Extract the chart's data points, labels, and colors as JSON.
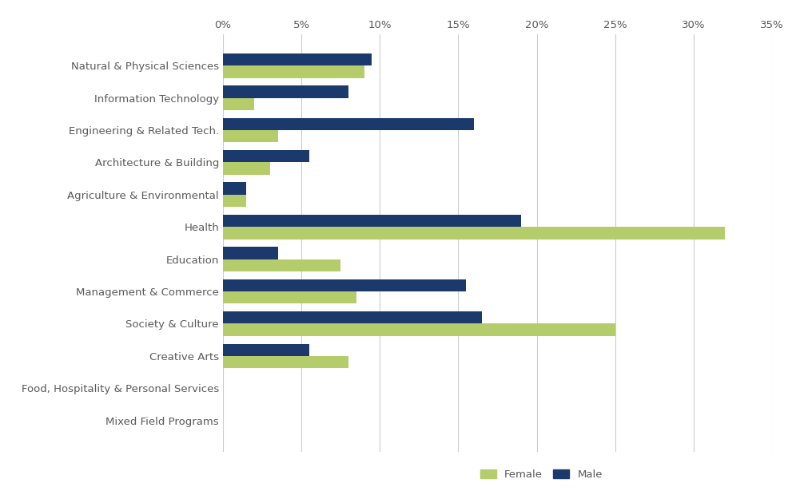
{
  "categories": [
    "Natural & Physical Sciences",
    "Information Technology",
    "Engineering & Related Tech.",
    "Architecture & Building",
    "Agriculture & Environmental",
    "Health",
    "Education",
    "Management & Commerce",
    "Society & Culture",
    "Creative Arts",
    "Food, Hospitality & Personal Services",
    "Mixed Field Programs"
  ],
  "female": [
    9.0,
    2.0,
    3.5,
    3.0,
    1.5,
    32.0,
    7.5,
    8.5,
    25.0,
    8.0,
    0.0,
    0.0
  ],
  "male": [
    9.5,
    8.0,
    16.0,
    5.5,
    1.5,
    19.0,
    3.5,
    15.5,
    16.5,
    5.5,
    0.0,
    0.0
  ],
  "female_color": "#b5cc6a",
  "male_color": "#1b3a6b",
  "background_color": "#ffffff",
  "xlim": [
    0,
    35
  ],
  "xticks": [
    0,
    5,
    10,
    15,
    20,
    25,
    30,
    35
  ],
  "bar_height": 0.38,
  "legend_labels": [
    "Female",
    "Male"
  ],
  "grid_color": "#cccccc",
  "label_color": "#595959",
  "title_color": "#444444"
}
